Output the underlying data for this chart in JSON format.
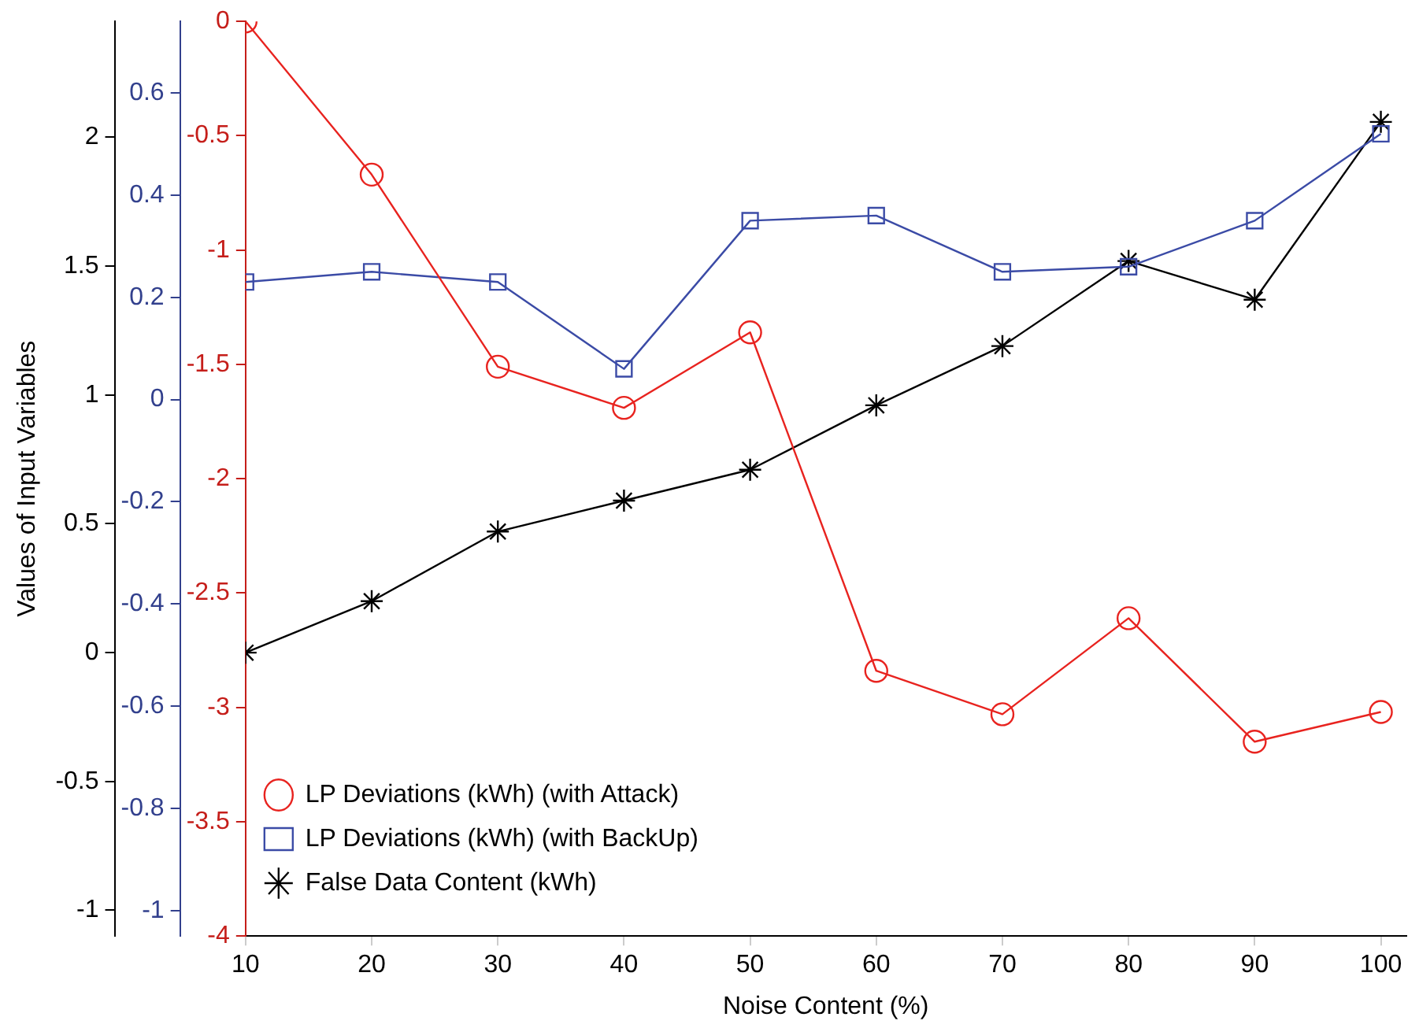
{
  "chart_data": {
    "type": "line",
    "xlabel": "Noise Content (%)",
    "ylabel": "Values of Input Variables",
    "x": [
      10,
      20,
      30,
      40,
      50,
      60,
      70,
      80,
      90,
      100
    ],
    "xlim": [
      10,
      102
    ],
    "xticks": [
      10,
      20,
      30,
      40,
      50,
      60,
      70,
      80,
      90,
      100
    ],
    "ylim": [
      -1.1,
      2.45
    ],
    "yticks": [
      {
        "value": -1,
        "label": "-1"
      },
      {
        "value": -0.5,
        "label": "-0.5"
      },
      {
        "value": 0,
        "label": "0"
      },
      {
        "value": 0.5,
        "label": "0.5"
      },
      {
        "value": 1,
        "label": "1"
      },
      {
        "value": 1.5,
        "label": "1.5"
      },
      {
        "value": 2,
        "label": "2"
      }
    ],
    "y2lim": [
      -1.05,
      0.74
    ],
    "y2ticks": [
      {
        "value": -1,
        "label": "-1"
      },
      {
        "value": -0.8,
        "label": "-0.8"
      },
      {
        "value": -0.6,
        "label": "-0.6"
      },
      {
        "value": -0.4,
        "label": "-0.4"
      },
      {
        "value": -0.2,
        "label": "-0.2"
      },
      {
        "value": 0,
        "label": "0"
      },
      {
        "value": 0.2,
        "label": "0.2"
      },
      {
        "value": 0.4,
        "label": "0.4"
      },
      {
        "value": 0.6,
        "label": "0.6"
      }
    ],
    "y3lim": [
      -4,
      0
    ],
    "y3ticks": [
      {
        "value": -4,
        "label": "-4"
      },
      {
        "value": -3.5,
        "label": "-3.5"
      },
      {
        "value": -3,
        "label": "-3"
      },
      {
        "value": -2.5,
        "label": "-2.5"
      },
      {
        "value": -2,
        "label": "-2"
      },
      {
        "value": -1.5,
        "label": "-1.5"
      },
      {
        "value": -1,
        "label": "-1"
      },
      {
        "value": -0.5,
        "label": "-0.5"
      },
      {
        "value": 0,
        "label": "0"
      }
    ],
    "grid": false,
    "legend": "bottom",
    "line_style": "solid",
    "series": [
      {
        "name": "LP Deviations (kWh) (with Attack)",
        "color": "#e8231f",
        "axis": "y3",
        "marker": "circle",
        "values": [
          0,
          -0.67,
          -1.51,
          -1.69,
          -1.36,
          -2.84,
          -3.03,
          -2.61,
          -3.15,
          -3.02
        ]
      },
      {
        "name": "LP Deviations (kWh) (with BackUp)",
        "color": "#3b4ba6",
        "axis": "y2",
        "marker": "square",
        "values": [
          0.23,
          0.25,
          0.23,
          0.06,
          0.35,
          0.36,
          0.25,
          0.26,
          0.35,
          0.52
        ]
      },
      {
        "name": "False Data Content (kWh)",
        "color": "#000000",
        "axis": "y",
        "marker": "cross",
        "values": [
          0,
          0.2,
          0.47,
          0.59,
          0.71,
          0.96,
          1.19,
          1.52,
          1.37,
          2.06
        ]
      }
    ]
  }
}
